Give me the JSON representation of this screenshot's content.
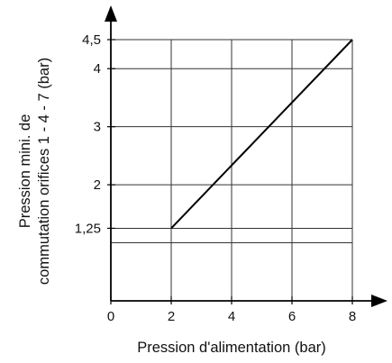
{
  "chart_data": {
    "type": "line",
    "title": "",
    "xlabel": "Pression d'alimentation (bar)",
    "ylabel_lines": [
      "Pression mini. de",
      "commutation orifices 1 - 4 - 7 (bar)"
    ],
    "x_ticks": [
      0,
      2,
      4,
      6,
      8
    ],
    "x_tick_labels": [
      "0",
      "2",
      "4",
      "6",
      "8"
    ],
    "y_ticks": [
      1.25,
      2,
      3,
      4,
      4.5
    ],
    "y_tick_labels": [
      "1,25",
      "2",
      "3",
      "4",
      "4,5"
    ],
    "y_gridlines": [
      1,
      1.25,
      2,
      3,
      4,
      4.5
    ],
    "xlim": [
      0,
      8
    ],
    "ylim": [
      0,
      4.5
    ],
    "grid": true,
    "series": [
      {
        "x": [
          2,
          8
        ],
        "y": [
          1.25,
          4.5
        ]
      }
    ],
    "line_color": "#000000",
    "grid_color": "#333333"
  }
}
